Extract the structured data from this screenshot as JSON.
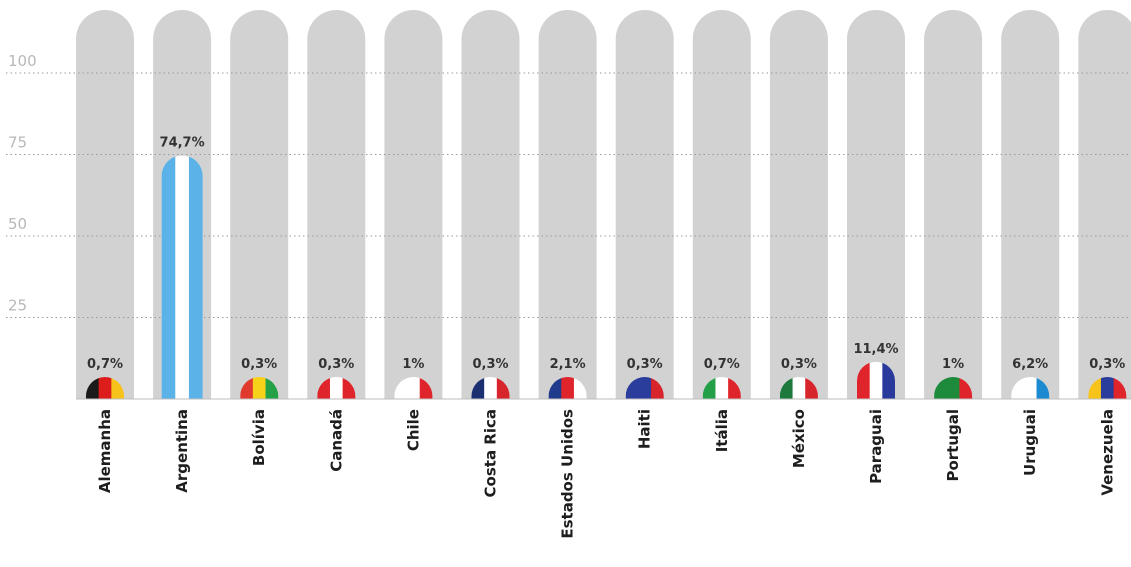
{
  "chart_data": {
    "type": "bar",
    "title": "",
    "xlabel": "",
    "ylabel": "",
    "ylim": [
      0,
      100
    ],
    "yticks": [
      25,
      50,
      75,
      100
    ],
    "grid": true,
    "categories": [
      "Alemanha",
      "Argentina",
      "Bolívia",
      "Canadá",
      "Chile",
      "Costa Rica",
      "Estados Unidos",
      "Haiti",
      "Itália",
      "México",
      "Paraguai",
      "Portugal",
      "Uruguai",
      "Venezuela"
    ],
    "values": [
      0.7,
      74.7,
      0.3,
      0.3,
      1,
      0.3,
      2.1,
      0.3,
      0.7,
      0.3,
      11.4,
      1,
      6.2,
      0.3
    ],
    "value_labels": [
      "0,7%",
      "74,7%",
      "0,3%",
      "0,3%",
      "1%",
      "0,3%",
      "2,1%",
      "0,3%",
      "0,7%",
      "0,3%",
      "11,4%",
      "1%",
      "6,2%",
      "0,3%"
    ],
    "flag_colors": [
      [
        "#1a1a1a",
        "#dd1c1c",
        "#f6c31a"
      ],
      [
        "#5ab2e8",
        "#ffffff",
        "#5ab2e8"
      ],
      [
        "#e03a2f",
        "#f6d21a",
        "#24a047"
      ],
      [
        "#e0242b",
        "#ffffff",
        "#e0242b"
      ],
      [
        "#ffffff",
        "#ffffff",
        "#e0242b"
      ],
      [
        "#1c2f70",
        "#ffffff",
        "#d8242b"
      ],
      [
        "#1f3c8c",
        "#e0242b",
        "#ffffff"
      ],
      [
        "#2a3d9c",
        "#2a3d9c",
        "#d8242b"
      ],
      [
        "#23a047",
        "#ffffff",
        "#e0242b"
      ],
      [
        "#1e7a3c",
        "#ffffff",
        "#d8242b"
      ],
      [
        "#e0242b",
        "#ffffff",
        "#2a3a9c"
      ],
      [
        "#1e8a3c",
        "#1e8a3c",
        "#e0242b"
      ],
      [
        "#ffffff",
        "#ffffff",
        "#1c8ad0"
      ],
      [
        "#f6c31a",
        "#2a3d9c",
        "#e0242b"
      ]
    ],
    "colors": {
      "column_background": "#d2d2d2",
      "grid": "#9a9a9a",
      "tick_text": "#b8b8b8",
      "label_text": "#1e1e1e"
    }
  }
}
